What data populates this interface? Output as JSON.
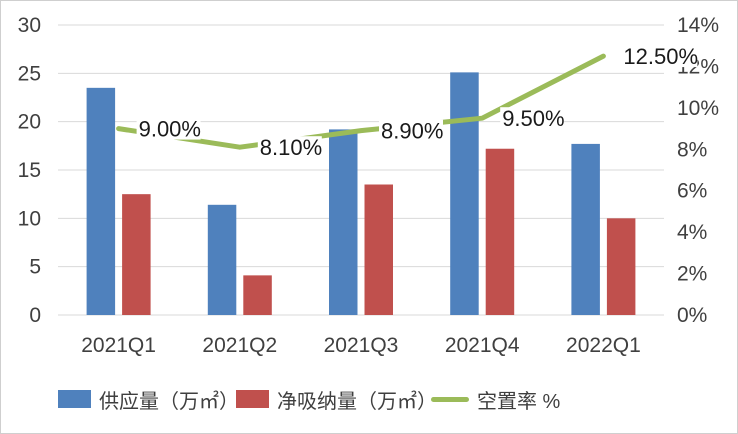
{
  "chart_data": {
    "type": "combo",
    "title": "",
    "categories": [
      "2021Q1",
      "2021Q2",
      "2021Q3",
      "2021Q4",
      "2022Q1"
    ],
    "series": [
      {
        "id": "supply",
        "name": "供应量（万㎡）",
        "type": "bar",
        "axis": "left",
        "color": "#4F81BD",
        "values": [
          23.5,
          11.4,
          19.2,
          25.1,
          17.7
        ]
      },
      {
        "id": "net-absorption",
        "name": "净吸纳量（万㎡）",
        "type": "bar",
        "axis": "left",
        "color": "#C0504D",
        "values": [
          12.5,
          4.1,
          13.5,
          17.2,
          10.0
        ]
      },
      {
        "id": "vacancy-rate",
        "name": "空置率 %",
        "type": "line",
        "axis": "right",
        "color": "#9BBB59",
        "values": [
          9.0,
          8.1,
          8.9,
          9.5,
          12.5
        ],
        "labels": [
          "9.00%",
          "8.10%",
          "8.90%",
          "9.50%",
          "12.50%"
        ]
      }
    ],
    "left_axis": {
      "min": 0,
      "max": 30,
      "step": 5,
      "ticks": [
        "0",
        "5",
        "10",
        "15",
        "20",
        "25",
        "30"
      ]
    },
    "right_axis": {
      "min": 0,
      "max": 14,
      "step": 2,
      "ticks": [
        "0%",
        "2%",
        "4%",
        "6%",
        "8%",
        "10%",
        "12%",
        "14%"
      ]
    },
    "grid": true,
    "legend_position": "bottom"
  },
  "colors": {
    "gridline": "#D9D9D9",
    "axis_text": "#404040",
    "data_label_text": "#1A1A1A",
    "background": "#FFFFFF",
    "border": "#CFCFCF"
  }
}
